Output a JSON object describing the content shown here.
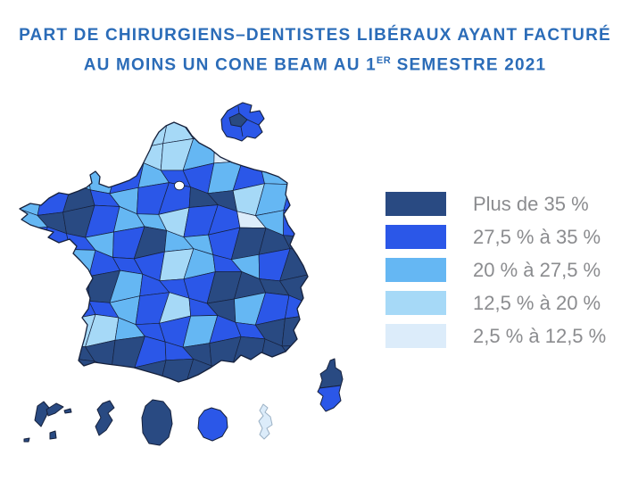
{
  "title": {
    "line1": "PART DE CHIRURGIENS–DENTISTES LIBÉRAUX AYANT FACTURÉ",
    "line2_prefix": "AU MOINS UN CONE BEAM AU 1",
    "line2_sup": "ER",
    "line2_suffix": " SEMESTRE 2021",
    "color": "#2b6cb8"
  },
  "legend": {
    "items": [
      {
        "label": "Plus de 35 %",
        "class": "A"
      },
      {
        "label": "27,5 % à 35 %",
        "class": "B"
      },
      {
        "label": "20 % à 27,5 %",
        "class": "C"
      },
      {
        "label": "12,5 % à 20 %",
        "class": "D"
      },
      {
        "label": "2,5 % à 12,5 %",
        "class": "E"
      }
    ],
    "text_color": "#8b8c8f"
  },
  "class_colors": {
    "A": "#294a82",
    "B": "#2b57e8",
    "C": "#65b7f3",
    "D": "#a6d9f7",
    "E": "#dcecfa"
  },
  "map": {
    "border_color": "#16213c",
    "mayotte_border_color": "#9ab0c4",
    "paris_inner_ring_color": "#ffffff",
    "metropole_grid_rows": [
      "CCCCCDDDCCBB",
      "CCCCCDDCECBB",
      "CBCCBCBBCBCB",
      "CBABCBBAADCB",
      "CAABCCDBBECB",
      "BBBCBACCBAAA",
      "CCCBBBDCBCBA",
      "AAAACBBBAAAA",
      "BBBBCBDBACBB",
      "DDDDCBBCBBAA",
      "AAAAABBAAAAA",
      "AAAAAAAAAAAA"
    ],
    "regions": {
      "ile_de_france_inset": "B",
      "ile_de_france_inset_center": "A",
      "haute_corse": "A",
      "corse_du_sud": "B",
      "guadeloupe": "A",
      "martinique": "A",
      "guyane": "A",
      "la_reunion": "B",
      "mayotte": "E"
    }
  }
}
